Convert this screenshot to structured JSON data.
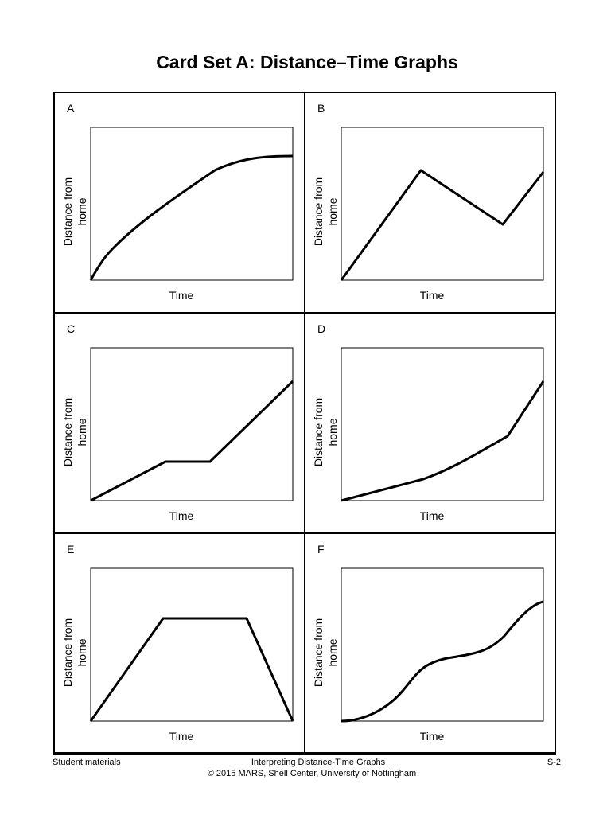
{
  "title": "Card Set A: Distance–Time Graphs",
  "cards": [
    {
      "letter": "A",
      "y_label": [
        "Distance from",
        "home"
      ],
      "x_label": "Time"
    },
    {
      "letter": "B",
      "y_label": [
        "Distance from",
        "home"
      ],
      "x_label": "Time"
    },
    {
      "letter": "C",
      "y_label": [
        "Distance from",
        "home"
      ],
      "x_label": "Time"
    },
    {
      "letter": "D",
      "y_label": [
        "Distance from",
        "home"
      ],
      "x_label": "Time"
    },
    {
      "letter": "E",
      "y_label": [
        "Distance from",
        "home"
      ],
      "x_label": "Time"
    },
    {
      "letter": "F",
      "y_label": [
        "Distance from",
        "home"
      ],
      "x_label": "Time"
    }
  ],
  "footer": {
    "left": "Student materials",
    "center": [
      "Interpreting Distance-Time Graphs",
      "© 2015 MARS, Shell Center, University of Nottingham"
    ],
    "right": "S-2"
  }
}
